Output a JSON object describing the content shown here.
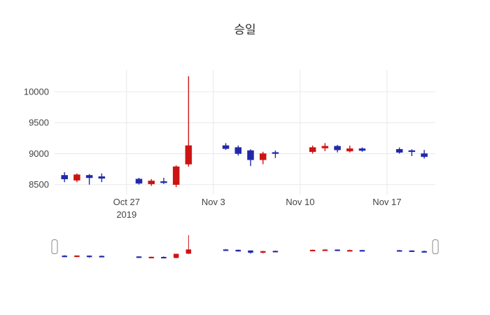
{
  "chart_data": {
    "type": "candlestick",
    "title": "승일",
    "ylim": [
      8350,
      10350
    ],
    "y_ticks": [
      {
        "value": 8500,
        "label": "8500"
      },
      {
        "value": 9000,
        "label": "9000"
      },
      {
        "value": 9500,
        "label": "9500"
      },
      {
        "value": 10000,
        "label": "10000"
      }
    ],
    "x_ticks": [
      {
        "date": "2019-10-27",
        "label": "Oct 27",
        "sublabel": "2019"
      },
      {
        "date": "2019-11-03",
        "label": "Nov 3"
      },
      {
        "date": "2019-11-10",
        "label": "Nov 10"
      },
      {
        "date": "2019-11-17",
        "label": "Nov 17"
      }
    ],
    "colors": {
      "up": "#cc1414",
      "down": "#2228aa",
      "grid": "#e8e8e8",
      "tick_text": "#444444",
      "handle_fill": "#ffffff",
      "handle_stroke": "#888888"
    },
    "candles": [
      {
        "date": "2019-10-22",
        "open": 8650,
        "high": 8700,
        "low": 8540,
        "close": 8590
      },
      {
        "date": "2019-10-23",
        "open": 8570,
        "high": 8680,
        "low": 8540,
        "close": 8660
      },
      {
        "date": "2019-10-24",
        "open": 8650,
        "high": 8670,
        "low": 8500,
        "close": 8610
      },
      {
        "date": "2019-10-25",
        "open": 8630,
        "high": 8680,
        "low": 8540,
        "close": 8600
      },
      {
        "date": "2019-10-28",
        "open": 8590,
        "high": 8610,
        "low": 8500,
        "close": 8520
      },
      {
        "date": "2019-10-29",
        "open": 8510,
        "high": 8590,
        "low": 8480,
        "close": 8560
      },
      {
        "date": "2019-10-30",
        "open": 8550,
        "high": 8610,
        "low": 8510,
        "close": 8530
      },
      {
        "date": "2019-10-31",
        "open": 8500,
        "high": 8810,
        "low": 8460,
        "close": 8790
      },
      {
        "date": "2019-11-01",
        "open": 8830,
        "high": 10250,
        "low": 8790,
        "close": 9130
      },
      {
        "date": "2019-11-04",
        "open": 9130,
        "high": 9170,
        "low": 9060,
        "close": 9080
      },
      {
        "date": "2019-11-05",
        "open": 9100,
        "high": 9130,
        "low": 8970,
        "close": 9000
      },
      {
        "date": "2019-11-06",
        "open": 9050,
        "high": 9070,
        "low": 8800,
        "close": 8900
      },
      {
        "date": "2019-11-07",
        "open": 8900,
        "high": 9030,
        "low": 8830,
        "close": 9000
      },
      {
        "date": "2019-11-08",
        "open": 9020,
        "high": 9050,
        "low": 8930,
        "close": 9000
      },
      {
        "date": "2019-11-11",
        "open": 9030,
        "high": 9130,
        "low": 9000,
        "close": 9100
      },
      {
        "date": "2019-11-12",
        "open": 9090,
        "high": 9170,
        "low": 9040,
        "close": 9120
      },
      {
        "date": "2019-11-13",
        "open": 9120,
        "high": 9140,
        "low": 9020,
        "close": 9060
      },
      {
        "date": "2019-11-14",
        "open": 9040,
        "high": 9130,
        "low": 9020,
        "close": 9080
      },
      {
        "date": "2019-11-15",
        "open": 9080,
        "high": 9100,
        "low": 9030,
        "close": 9050
      },
      {
        "date": "2019-11-18",
        "open": 9070,
        "high": 9100,
        "low": 9000,
        "close": 9020
      },
      {
        "date": "2019-11-19",
        "open": 9050,
        "high": 9070,
        "low": 8960,
        "close": 9030
      },
      {
        "date": "2019-11-20",
        "open": 9000,
        "high": 9060,
        "low": 8920,
        "close": 8950
      }
    ]
  }
}
